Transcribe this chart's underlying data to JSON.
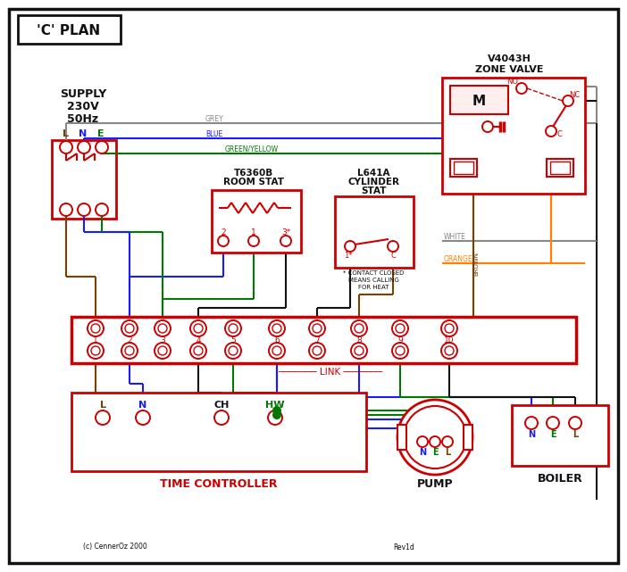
{
  "title": "'C' PLAN",
  "RED": "#cc0000",
  "BLUE": "#1a1aff",
  "GREEN": "#007700",
  "GREY": "#888888",
  "BROWN": "#7B3F00",
  "ORANGE": "#FF8000",
  "BLACK": "#111111",
  "supply_label1": "SUPPLY",
  "supply_label2": "230V",
  "supply_label3": "50Hz",
  "lne": "L   N   E",
  "zone_valve_line1": "V4043H",
  "zone_valve_line2": "ZONE VALVE",
  "room_stat_line1": "T6360B",
  "room_stat_line2": "ROOM STAT",
  "cyl_stat_line1": "L641A",
  "cyl_stat_line2": "CYLINDER",
  "cyl_stat_line3": "STAT",
  "time_ctrl": "TIME CONTROLLER",
  "pump": "PUMP",
  "boiler": "BOILER",
  "link": "LINK",
  "copyright": "(c) CennerOz 2000",
  "revision": "Rev1d",
  "contact_note1": "* CONTACT CLOSED",
  "contact_note2": "MEANS CALLING",
  "contact_note3": "FOR HEAT",
  "no": "NO",
  "nc": "NC",
  "c_label": "C",
  "m_label": "M",
  "grey_label": "GREY",
  "blue_label": "BLUE",
  "gy_label": "GREEN/YELLOW",
  "white_label": "WHITE",
  "orange_label": "ORANGE",
  "brown_label": "BROWN"
}
